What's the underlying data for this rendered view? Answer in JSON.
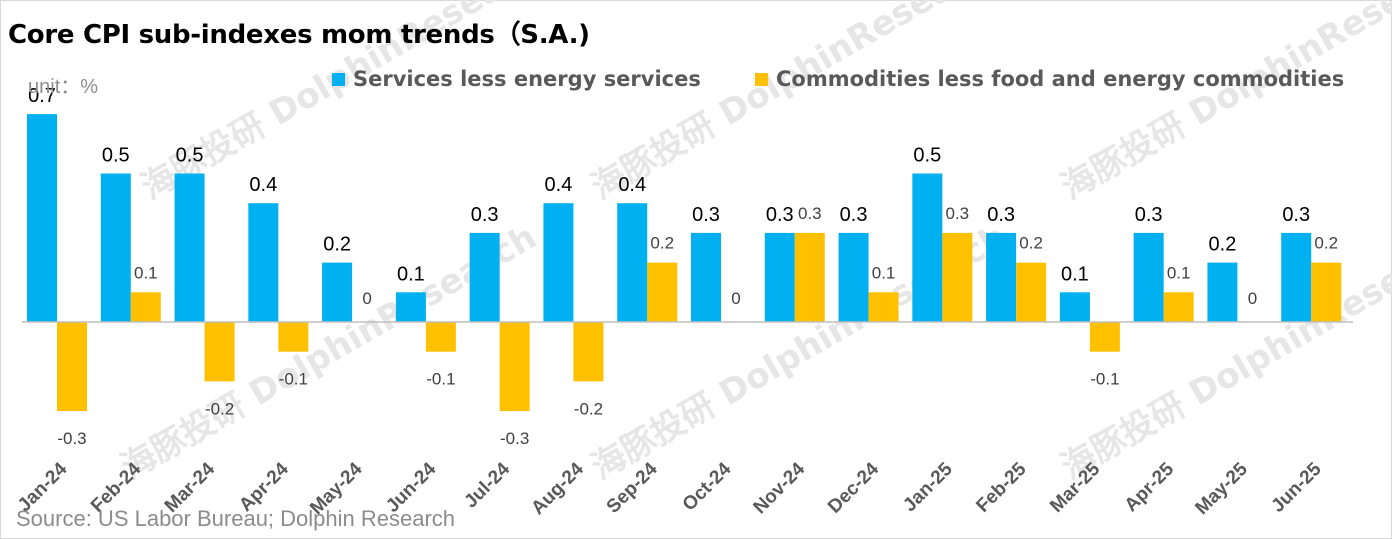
{
  "title": "Core CPI sub-indexes mom trends（S.A.)",
  "unit": "unit：%",
  "source": "Source: US Labor Bureau; Dolphin Research",
  "watermark": "海豚投研 DolphinResearch",
  "colors": {
    "services": "#00B0F0",
    "commodities": "#FFC000",
    "axis": "#bfbfbf",
    "text": "#000000"
  },
  "legend": [
    {
      "name": "Services less energy services",
      "color": "#00B0F0"
    },
    {
      "name": "Commodities less food and energy commodities",
      "color": "#FFC000"
    }
  ],
  "chart_data": {
    "type": "bar",
    "title": "Core CPI sub-indexes mom trends（S.A.)",
    "ylabel": "unit：%",
    "categories": [
      "Jan-24",
      "Feb-24",
      "Mar-24",
      "Apr-24",
      "May-24",
      "Jun-24",
      "Jul-24",
      "Aug-24",
      "Sep-24",
      "Oct-24",
      "Nov-24",
      "Dec-24",
      "Jan-25",
      "Feb-25",
      "Mar-25",
      "Apr-25",
      "May-25",
      "Jun-25"
    ],
    "series": [
      {
        "name": "Services less energy services",
        "values": [
          0.7,
          0.5,
          0.5,
          0.4,
          0.2,
          0.1,
          0.3,
          0.4,
          0.4,
          0.3,
          0.3,
          0.3,
          0.5,
          0.3,
          0.1,
          0.3,
          0.2,
          0.3
        ]
      },
      {
        "name": "Commodities less food and energy commodities",
        "values": [
          -0.3,
          0.1,
          -0.2,
          -0.1,
          0,
          -0.1,
          -0.3,
          -0.2,
          0.2,
          0,
          0.3,
          0.1,
          0.3,
          0.2,
          -0.1,
          0.1,
          0,
          0.2
        ]
      }
    ],
    "ylim": [
      -0.3,
      0.7
    ],
    "grid": false,
    "legend_position": "top"
  }
}
